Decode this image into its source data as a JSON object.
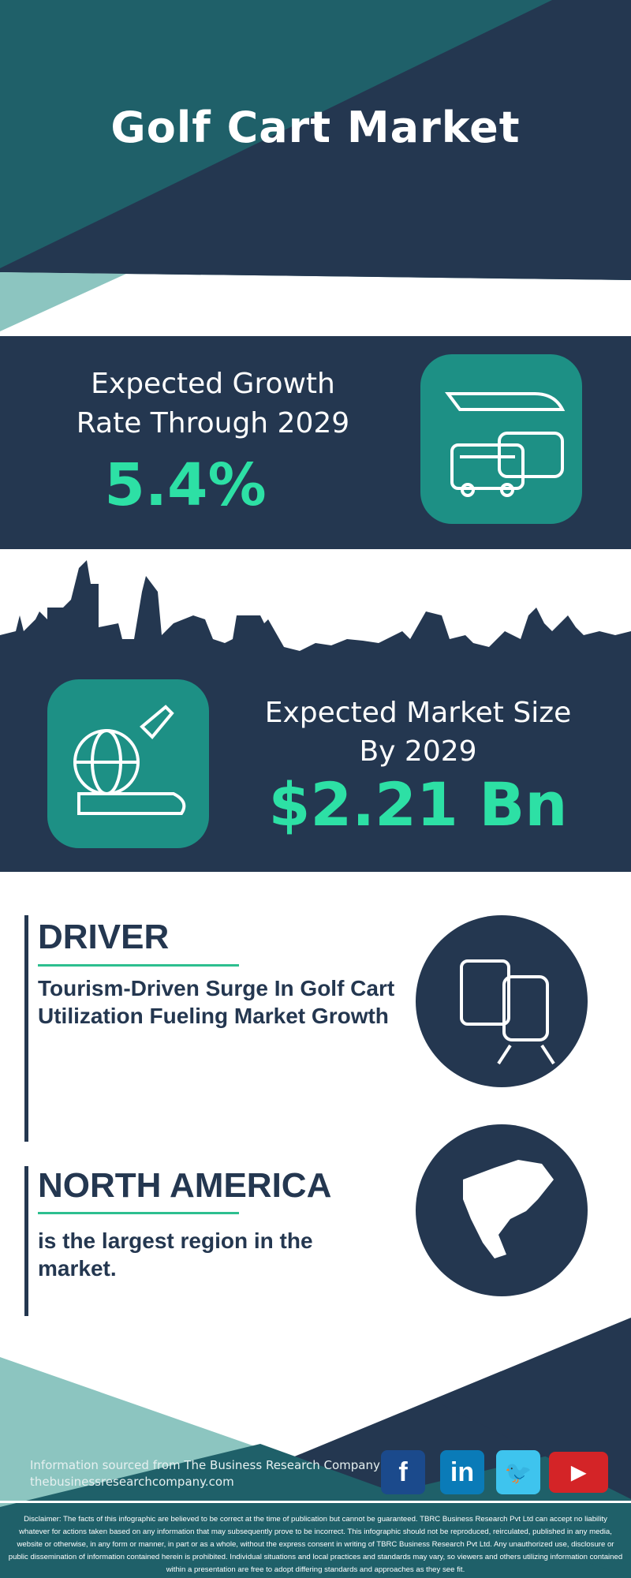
{
  "title": "Golf Cart Market",
  "growth": {
    "label_line1": "Expected Growth",
    "label_line2": "Rate Through 2029",
    "value": "5.4%"
  },
  "market_size": {
    "label_line1": "Expected Market Size",
    "label_line2": "By 2029",
    "value": "$2.21 Bn"
  },
  "driver": {
    "heading": "DRIVER",
    "text": "Tourism-Driven Surge In Golf Cart Utilization Fueling Market Growth"
  },
  "region": {
    "heading": "NORTH AMERICA",
    "text": "is the largest region in the market."
  },
  "footer": {
    "source": "Information sourced from The Business Research Company",
    "website": "thebusinessresearchcompany.com",
    "social": [
      "facebook-icon",
      "linkedin-icon",
      "twitter-icon",
      "youtube-icon"
    ]
  },
  "disclaimer": "Disclaimer: The facts of this infographic are believed to be correct at the time of publication but cannot be guaranteed. TBRC Business Research Pvt Ltd can accept no liability whatever for actions taken based on any information that may subsequently prove to be incorrect. This infographic should not be reproduced, reirculated, published in any media, website or otherwise, in any form or manner, in part or as a whole, without the express consent in writing of TBRC Business Research Pvt Ltd. Any unauthorized use, disclosure or public dissemination of information contained herein is prohibited. Individual situations and local practices and standards may vary, so viewers and others utilizing information contained within a presentation are free to adopt differing standards and approaches as they see fit.",
  "colors": {
    "navy": "#243750",
    "teal": "#1f6069",
    "light_teal": "#8cc5c0",
    "accent_green": "#2de0a5",
    "icon_teal": "#1d9085"
  }
}
